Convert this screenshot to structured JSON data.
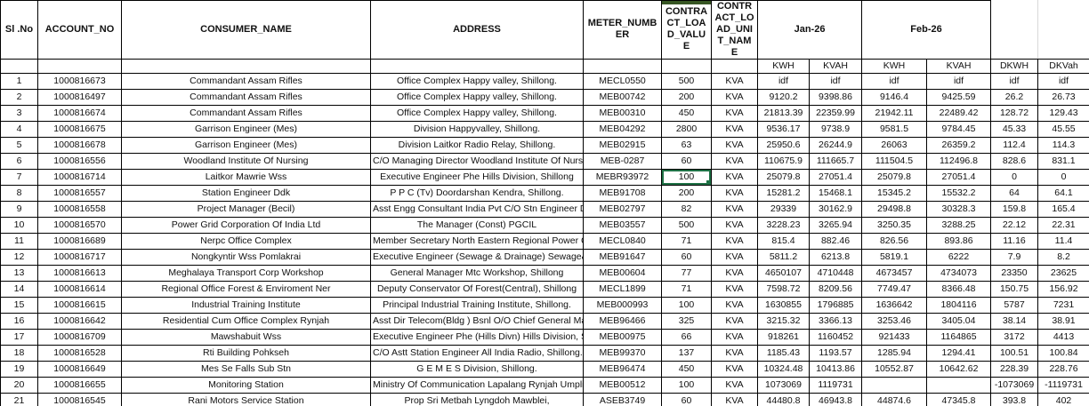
{
  "colors": {
    "jan_header_bg": "#FFFF00",
    "feb_header_bg": "#92D050",
    "active_cell_border": "#1E7145",
    "column_top_strip": "#375623",
    "grid_border": "#000000",
    "light_gridline": "#d9d9d9"
  },
  "table": {
    "header": {
      "slno": "Sl .No",
      "account_no": "ACCOUNT_NO",
      "consumer_name": "CONSUMER_NAME",
      "address": "ADDRESS",
      "meter_number": "METER_NUMBER",
      "contract_load_value": "CONTRACT_LOAD_VALUE",
      "contract_load_unit_name": "CONTRACT_LOAD_UNIT_NAME"
    },
    "month_groups": [
      {
        "label": "Jan-26",
        "color": "#FFFF00"
      },
      {
        "label": "Feb-26",
        "color": "#92D050"
      }
    ],
    "sub_headers": [
      "KWH",
      "KVAH",
      "KWH",
      "KVAH",
      "DKWH",
      "DKVah"
    ],
    "rows": [
      [
        "1",
        "1000816673",
        "Commandant Assam Rifles",
        "Office Complex Happy valley, Shillong.",
        "MECL0550",
        "500",
        "KVA",
        "idf",
        "idf",
        "idf",
        "idf",
        "idf",
        "idf"
      ],
      [
        "2",
        "1000816497",
        "Commandant Assam Rifles",
        "Office Complex Happy valley, Shillong.",
        "MEB00742",
        "200",
        "KVA",
        "9120.2",
        "9398.86",
        "9146.4",
        "9425.59",
        "26.2",
        "26.73"
      ],
      [
        "3",
        "1000816674",
        "Commandant Assam Rifles",
        "Office Complex Happy valley, Shillong.",
        "MEB00310",
        "450",
        "KVA",
        "21813.39",
        "22359.99",
        "21942.11",
        "22489.42",
        "128.72",
        "129.43"
      ],
      [
        "4",
        "1000816675",
        "Garrison Engineer (Mes)",
        "Division Happyvalley, Shillong.",
        "MEB04292",
        "2800",
        "KVA",
        "9536.17",
        "9738.9",
        "9581.5",
        "9784.45",
        "45.33",
        "45.55"
      ],
      [
        "5",
        "1000816678",
        "Garrison Engineer (Mes)",
        "Division Laitkor Radio Relay, Shillong.",
        "MEB02915",
        "63",
        "KVA",
        "25950.6",
        "26244.9",
        "26063",
        "26359.2",
        "112.4",
        "114.3"
      ],
      [
        "6",
        "1000816556",
        "Woodland Institute Of Nursing",
        "C/O Managing Director Woodland Institute Of Nursing,",
        "MEB-0287",
        "60",
        "KVA",
        "110675.9",
        "111665.7",
        "111504.5",
        "112496.8",
        "828.6",
        "831.1"
      ],
      [
        "7",
        "1000816714",
        "Laitkor Mawrie Wss",
        "Executive Engineer Phe Hills Division, Shillong",
        "MEBR93972",
        "100",
        "KVA",
        "25079.8",
        "27051.4",
        "25079.8",
        "27051.4",
        "0",
        "0"
      ],
      [
        "8",
        "1000816557",
        "Station Engineer Ddk",
        "P P C (Tv) Doordarshan Kendra, Shillong.",
        "MEB91708",
        "200",
        "KVA",
        "15281.2",
        "15468.1",
        "15345.2",
        "15532.2",
        "64",
        "64.1"
      ],
      [
        "9",
        "1000816558",
        "Project Manager (Becil)",
        "Asst Engg Consultant India Pvt C/O Stn Engineer Ddk Laitkor, Shillong. #",
        "MEB02797",
        "82",
        "KVA",
        "29339",
        "30162.9",
        "29498.8",
        "30328.3",
        "159.8",
        "165.4"
      ],
      [
        "10",
        "1000816570",
        "Power Grid Corporation Of India Ltd",
        "The Manager (Const) PGCIL",
        "MEB03557",
        "500",
        "KVA",
        "3228.23",
        "3265.94",
        "3250.35",
        "3288.25",
        "22.12",
        "22.31"
      ],
      [
        "11",
        "1000816689",
        "Nerpc Office Complex",
        "Member Secretary North Eastern Regional Power Committee, Shillong",
        "MECL0840",
        "71",
        "KVA",
        "815.4",
        "882.46",
        "826.56",
        "893.86",
        "11.16",
        "11.4"
      ],
      [
        "12",
        "1000816717",
        "Nongkyntir Wss Pomlakrai",
        "Executive Engineer (Sewage & Drainage) Sewage& Drainage Division, Shillong",
        "MEB91647",
        "60",
        "KVA",
        "5811.2",
        "6213.8",
        "5819.1",
        "6222",
        "7.9",
        "8.2"
      ],
      [
        "13",
        "1000816613",
        "Meghalaya Transport Corp Workshop",
        "General Manager Mtc Workshop, Shillong",
        "MEB00604",
        "77",
        "KVA",
        "4650107",
        "4710448",
        "4673457",
        "4734073",
        "23350",
        "23625"
      ],
      [
        "14",
        "1000816614",
        "Regional Office Forest & Enviroment Ner",
        "Deputy Conservator Of Forest(Central), Shillong",
        "MECL1899",
        "71",
        "KVA",
        "7598.72",
        "8209.56",
        "7749.47",
        "8366.48",
        "150.75",
        "156.92"
      ],
      [
        "15",
        "1000816615",
        "Industrial Training Institute",
        "Principal Industrial Training Institute, Shillong.",
        "MEB000993",
        "100",
        "KVA",
        "1630855",
        "1796885",
        "1636642",
        "1804116",
        "5787",
        "7231"
      ],
      [
        "16",
        "1000816642",
        "Residential Cum Office Complex Rynjah",
        "Asst Dir Telecom(Bldg ) Bsnl O/O Chief General Manager Telecom",
        "MEB96466",
        "325",
        "KVA",
        "3215.32",
        "3366.13",
        "3253.46",
        "3405.04",
        "38.14",
        "38.91"
      ],
      [
        "17",
        "1000816709",
        "Mawshabuit Wss",
        "Executive Engineer Phe (Hills Divn) Hills Division, Shillong.",
        "MEB00975",
        "66",
        "KVA",
        "918261",
        "1160452",
        "921433",
        "1164865",
        "3172",
        "4413"
      ],
      [
        "18",
        "1000816528",
        "Rti Building Pohkseh",
        "C/O Astt Station Engineer All India Radio, Shillong.",
        "MEB99370",
        "137",
        "KVA",
        "1185.43",
        "1193.57",
        "1285.94",
        "1294.41",
        "100.51",
        "100.84"
      ],
      [
        "19",
        "1000816649",
        "Mes Se Falls Sub Stn",
        "G E M E S Division, Shillong.",
        "MEB96474",
        "450",
        "KVA",
        "10324.48",
        "10413.86",
        "10552.87",
        "10642.62",
        "228.39",
        "228.76"
      ],
      [
        "20",
        "1000816655",
        "Monitoring Station",
        "Ministry Of Communication Lapalang Rynjah Umpling, Shillong.",
        "MEB00512",
        "100",
        "KVA",
        "1073069",
        "1119731",
        "",
        "",
        "-1073069",
        "-1119731"
      ],
      [
        "21",
        "1000816545",
        "Rani Motors Service Station",
        "Prop Sri Metbah Lyngdoh Mawblei,",
        "ASEB3749",
        "60",
        "KVA",
        "44480.8",
        "46943.8",
        "44874.6",
        "47345.8",
        "393.8",
        "402"
      ]
    ]
  },
  "active_cell": {
    "row_index": 6,
    "col_index": 5,
    "value": "100"
  }
}
